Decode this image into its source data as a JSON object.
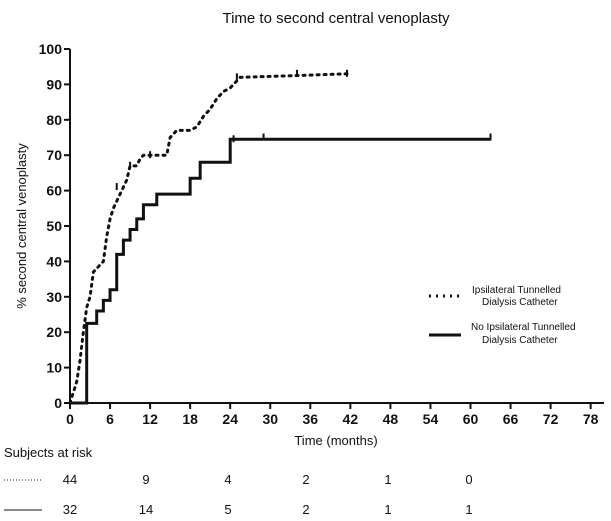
{
  "chart_data": {
    "type": "line",
    "title": "Time to second central venoplasty",
    "xlabel": "Time (months)",
    "ylabel": "% second central venoplasty",
    "xlim": [
      0,
      80
    ],
    "ylim": [
      0,
      100
    ],
    "xticks": [
      0,
      6,
      12,
      18,
      24,
      30,
      36,
      42,
      48,
      54,
      60,
      66,
      72,
      78
    ],
    "yticks": [
      0,
      10,
      20,
      30,
      40,
      50,
      60,
      70,
      80,
      90,
      100
    ],
    "grid": false,
    "legend_position": "right",
    "series": [
      {
        "name": "Ipsilateral Tunnelled Dialysis Catheter",
        "style": "dotted",
        "color": "#111111",
        "x": [
          0,
          0.5,
          1,
          1.5,
          2,
          2.5,
          3,
          3.5,
          4,
          5,
          5.5,
          6,
          6.5,
          7,
          8,
          8.5,
          9,
          10,
          10.5,
          11,
          12,
          14.5,
          15,
          16,
          18,
          19,
          20,
          21,
          22,
          23,
          24,
          25.5,
          34,
          41.5
        ],
        "y": [
          0,
          3,
          6,
          12,
          20,
          27,
          30,
          37,
          38,
          40,
          47,
          52,
          55,
          57,
          61,
          63,
          67,
          67,
          69,
          70,
          70,
          70,
          75,
          77,
          77,
          78,
          81,
          83,
          86,
          88,
          89,
          92,
          92.5,
          93
        ],
        "censored": [
          [
            7,
            61
          ],
          [
            9,
            67
          ],
          [
            12,
            70
          ],
          [
            25,
            92
          ],
          [
            34,
            93
          ],
          [
            41.5,
            93
          ]
        ]
      },
      {
        "name": "No Ipsilateral Tunnelled Dialysis Catheter",
        "style": "solid",
        "color": "#111111",
        "x": [
          0,
          2.5,
          2.5,
          3,
          4,
          5,
          6,
          7,
          8,
          9,
          10,
          11,
          13,
          15,
          18,
          19.5,
          20,
          22,
          24,
          63
        ],
        "y": [
          0,
          0,
          22.5,
          22.5,
          26,
          29,
          32,
          42,
          46,
          49,
          52,
          56,
          59,
          59,
          63.5,
          68,
          68,
          68,
          74.5,
          74.5
        ],
        "step": true,
        "censored": [
          [
            24.5,
            74.5
          ],
          [
            29,
            75
          ],
          [
            63,
            75
          ]
        ]
      }
    ]
  },
  "risk_table": {
    "heading": "Subjects at risk",
    "rows": [
      {
        "style": "dotted",
        "values": [
          "44",
          "9",
          "4",
          "2",
          "1",
          "0"
        ]
      },
      {
        "style": "solid",
        "values": [
          "32",
          "14",
          "5",
          "2",
          "1",
          "1"
        ]
      }
    ]
  }
}
